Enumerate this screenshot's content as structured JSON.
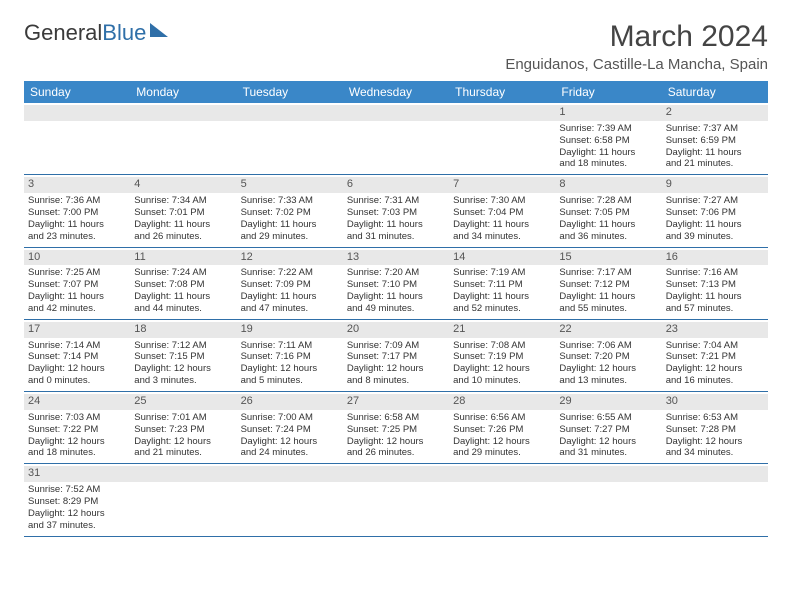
{
  "logo": {
    "part1": "General",
    "part2": "Blue"
  },
  "title": "March 2024",
  "location": "Enguidanos, Castille-La Mancha, Spain",
  "dow": [
    "Sunday",
    "Monday",
    "Tuesday",
    "Wednesday",
    "Thursday",
    "Friday",
    "Saturday"
  ],
  "colors": {
    "header_bg": "#3a87c8",
    "rule": "#2f6fa8",
    "daynum_bg": "#e8e8e8"
  },
  "weeks": [
    [
      null,
      null,
      null,
      null,
      null,
      {
        "n": "1",
        "sr": "Sunrise: 7:39 AM",
        "ss": "Sunset: 6:58 PM",
        "d1": "Daylight: 11 hours",
        "d2": "and 18 minutes."
      },
      {
        "n": "2",
        "sr": "Sunrise: 7:37 AM",
        "ss": "Sunset: 6:59 PM",
        "d1": "Daylight: 11 hours",
        "d2": "and 21 minutes."
      }
    ],
    [
      {
        "n": "3",
        "sr": "Sunrise: 7:36 AM",
        "ss": "Sunset: 7:00 PM",
        "d1": "Daylight: 11 hours",
        "d2": "and 23 minutes."
      },
      {
        "n": "4",
        "sr": "Sunrise: 7:34 AM",
        "ss": "Sunset: 7:01 PM",
        "d1": "Daylight: 11 hours",
        "d2": "and 26 minutes."
      },
      {
        "n": "5",
        "sr": "Sunrise: 7:33 AM",
        "ss": "Sunset: 7:02 PM",
        "d1": "Daylight: 11 hours",
        "d2": "and 29 minutes."
      },
      {
        "n": "6",
        "sr": "Sunrise: 7:31 AM",
        "ss": "Sunset: 7:03 PM",
        "d1": "Daylight: 11 hours",
        "d2": "and 31 minutes."
      },
      {
        "n": "7",
        "sr": "Sunrise: 7:30 AM",
        "ss": "Sunset: 7:04 PM",
        "d1": "Daylight: 11 hours",
        "d2": "and 34 minutes."
      },
      {
        "n": "8",
        "sr": "Sunrise: 7:28 AM",
        "ss": "Sunset: 7:05 PM",
        "d1": "Daylight: 11 hours",
        "d2": "and 36 minutes."
      },
      {
        "n": "9",
        "sr": "Sunrise: 7:27 AM",
        "ss": "Sunset: 7:06 PM",
        "d1": "Daylight: 11 hours",
        "d2": "and 39 minutes."
      }
    ],
    [
      {
        "n": "10",
        "sr": "Sunrise: 7:25 AM",
        "ss": "Sunset: 7:07 PM",
        "d1": "Daylight: 11 hours",
        "d2": "and 42 minutes."
      },
      {
        "n": "11",
        "sr": "Sunrise: 7:24 AM",
        "ss": "Sunset: 7:08 PM",
        "d1": "Daylight: 11 hours",
        "d2": "and 44 minutes."
      },
      {
        "n": "12",
        "sr": "Sunrise: 7:22 AM",
        "ss": "Sunset: 7:09 PM",
        "d1": "Daylight: 11 hours",
        "d2": "and 47 minutes."
      },
      {
        "n": "13",
        "sr": "Sunrise: 7:20 AM",
        "ss": "Sunset: 7:10 PM",
        "d1": "Daylight: 11 hours",
        "d2": "and 49 minutes."
      },
      {
        "n": "14",
        "sr": "Sunrise: 7:19 AM",
        "ss": "Sunset: 7:11 PM",
        "d1": "Daylight: 11 hours",
        "d2": "and 52 minutes."
      },
      {
        "n": "15",
        "sr": "Sunrise: 7:17 AM",
        "ss": "Sunset: 7:12 PM",
        "d1": "Daylight: 11 hours",
        "d2": "and 55 minutes."
      },
      {
        "n": "16",
        "sr": "Sunrise: 7:16 AM",
        "ss": "Sunset: 7:13 PM",
        "d1": "Daylight: 11 hours",
        "d2": "and 57 minutes."
      }
    ],
    [
      {
        "n": "17",
        "sr": "Sunrise: 7:14 AM",
        "ss": "Sunset: 7:14 PM",
        "d1": "Daylight: 12 hours",
        "d2": "and 0 minutes."
      },
      {
        "n": "18",
        "sr": "Sunrise: 7:12 AM",
        "ss": "Sunset: 7:15 PM",
        "d1": "Daylight: 12 hours",
        "d2": "and 3 minutes."
      },
      {
        "n": "19",
        "sr": "Sunrise: 7:11 AM",
        "ss": "Sunset: 7:16 PM",
        "d1": "Daylight: 12 hours",
        "d2": "and 5 minutes."
      },
      {
        "n": "20",
        "sr": "Sunrise: 7:09 AM",
        "ss": "Sunset: 7:17 PM",
        "d1": "Daylight: 12 hours",
        "d2": "and 8 minutes."
      },
      {
        "n": "21",
        "sr": "Sunrise: 7:08 AM",
        "ss": "Sunset: 7:19 PM",
        "d1": "Daylight: 12 hours",
        "d2": "and 10 minutes."
      },
      {
        "n": "22",
        "sr": "Sunrise: 7:06 AM",
        "ss": "Sunset: 7:20 PM",
        "d1": "Daylight: 12 hours",
        "d2": "and 13 minutes."
      },
      {
        "n": "23",
        "sr": "Sunrise: 7:04 AM",
        "ss": "Sunset: 7:21 PM",
        "d1": "Daylight: 12 hours",
        "d2": "and 16 minutes."
      }
    ],
    [
      {
        "n": "24",
        "sr": "Sunrise: 7:03 AM",
        "ss": "Sunset: 7:22 PM",
        "d1": "Daylight: 12 hours",
        "d2": "and 18 minutes."
      },
      {
        "n": "25",
        "sr": "Sunrise: 7:01 AM",
        "ss": "Sunset: 7:23 PM",
        "d1": "Daylight: 12 hours",
        "d2": "and 21 minutes."
      },
      {
        "n": "26",
        "sr": "Sunrise: 7:00 AM",
        "ss": "Sunset: 7:24 PM",
        "d1": "Daylight: 12 hours",
        "d2": "and 24 minutes."
      },
      {
        "n": "27",
        "sr": "Sunrise: 6:58 AM",
        "ss": "Sunset: 7:25 PM",
        "d1": "Daylight: 12 hours",
        "d2": "and 26 minutes."
      },
      {
        "n": "28",
        "sr": "Sunrise: 6:56 AM",
        "ss": "Sunset: 7:26 PM",
        "d1": "Daylight: 12 hours",
        "d2": "and 29 minutes."
      },
      {
        "n": "29",
        "sr": "Sunrise: 6:55 AM",
        "ss": "Sunset: 7:27 PM",
        "d1": "Daylight: 12 hours",
        "d2": "and 31 minutes."
      },
      {
        "n": "30",
        "sr": "Sunrise: 6:53 AM",
        "ss": "Sunset: 7:28 PM",
        "d1": "Daylight: 12 hours",
        "d2": "and 34 minutes."
      }
    ],
    [
      {
        "n": "31",
        "sr": "Sunrise: 7:52 AM",
        "ss": "Sunset: 8:29 PM",
        "d1": "Daylight: 12 hours",
        "d2": "and 37 minutes."
      },
      null,
      null,
      null,
      null,
      null,
      null
    ]
  ]
}
